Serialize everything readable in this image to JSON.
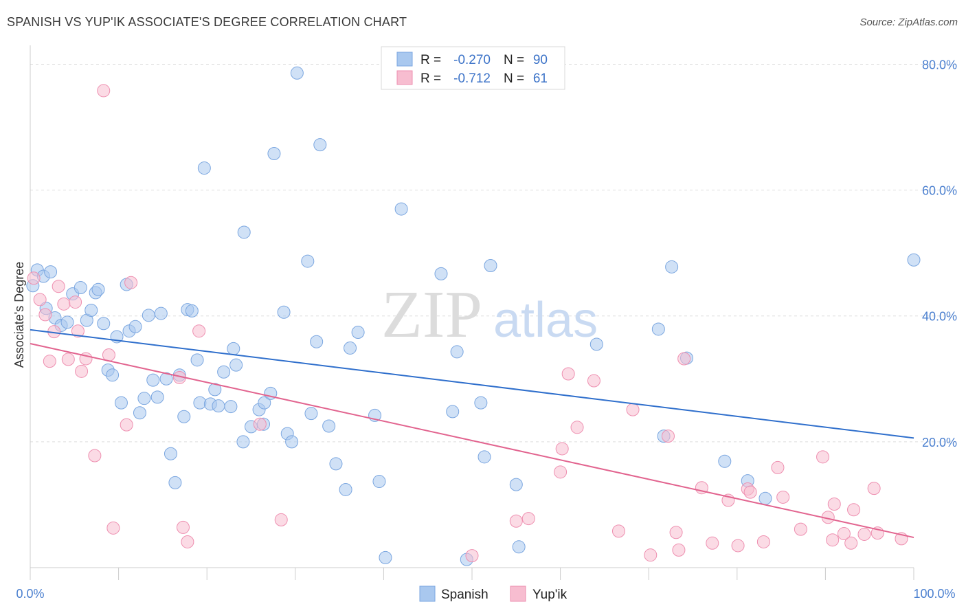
{
  "chart_data": {
    "type": "scatter",
    "title": "SPANISH VS YUP'IK ASSOCIATE'S DEGREE CORRELATION CHART",
    "source": "Source: ZipAtlas.com",
    "ylabel": "Associate's Degree",
    "xlabel": "",
    "xlim": [
      0,
      100
    ],
    "ylim": [
      0,
      83
    ],
    "x_tick_labels": [
      "0.0%",
      "100.0%"
    ],
    "y_ticks": [
      20,
      40,
      60,
      80
    ],
    "y_tick_labels": [
      "20.0%",
      "40.0%",
      "60.0%",
      "80.0%"
    ],
    "watermark": {
      "zip": "ZIP",
      "atlas": "atlas"
    },
    "legend_top": {
      "r_label": "R =",
      "n_label": "N =",
      "rows": [
        {
          "r": "-0.270",
          "n": "90"
        },
        {
          "r": "-0.712",
          "n": "61"
        }
      ]
    },
    "series": [
      {
        "name": "Spanish",
        "color": "#a9c8ef",
        "stroke": "#7aa6e0",
        "line_color": "#2f6fcc",
        "trend": [
          [
            0,
            37.8
          ],
          [
            100,
            20.6
          ]
        ],
        "points": [
          [
            0.3,
            44.8
          ],
          [
            0.8,
            47.3
          ],
          [
            1.5,
            46.3
          ],
          [
            2.3,
            47.0
          ],
          [
            1.8,
            41.2
          ],
          [
            2.8,
            39.7
          ],
          [
            3.5,
            38.5
          ],
          [
            4.2,
            39.0
          ],
          [
            4.8,
            43.5
          ],
          [
            5.7,
            44.5
          ],
          [
            6.4,
            39.3
          ],
          [
            6.9,
            40.9
          ],
          [
            7.4,
            43.7
          ],
          [
            7.7,
            44.2
          ],
          [
            8.3,
            38.8
          ],
          [
            8.8,
            31.4
          ],
          [
            9.3,
            30.6
          ],
          [
            9.8,
            36.7
          ],
          [
            10.3,
            26.2
          ],
          [
            10.9,
            45.0
          ],
          [
            11.2,
            37.6
          ],
          [
            11.9,
            38.3
          ],
          [
            12.4,
            24.6
          ],
          [
            12.9,
            26.9
          ],
          [
            13.4,
            40.1
          ],
          [
            13.9,
            29.8
          ],
          [
            14.4,
            27.1
          ],
          [
            14.8,
            40.4
          ],
          [
            15.4,
            30.0
          ],
          [
            15.9,
            18.1
          ],
          [
            16.4,
            13.5
          ],
          [
            16.9,
            30.6
          ],
          [
            17.4,
            24.0
          ],
          [
            17.8,
            41.0
          ],
          [
            18.3,
            40.8
          ],
          [
            18.9,
            33.0
          ],
          [
            19.2,
            26.2
          ],
          [
            19.7,
            63.5
          ],
          [
            20.4,
            26.0
          ],
          [
            20.9,
            28.3
          ],
          [
            21.3,
            25.7
          ],
          [
            21.9,
            31.1
          ],
          [
            22.7,
            25.6
          ],
          [
            23.0,
            34.8
          ],
          [
            23.3,
            32.2
          ],
          [
            24.1,
            20.0
          ],
          [
            24.2,
            53.3
          ],
          [
            25.0,
            22.4
          ],
          [
            25.9,
            25.1
          ],
          [
            26.5,
            26.2
          ],
          [
            26.4,
            22.8
          ],
          [
            27.2,
            27.7
          ],
          [
            27.6,
            65.8
          ],
          [
            28.7,
            40.6
          ],
          [
            29.1,
            21.3
          ],
          [
            29.6,
            20.0
          ],
          [
            30.2,
            78.6
          ],
          [
            31.4,
            48.7
          ],
          [
            31.8,
            24.5
          ],
          [
            32.4,
            35.9
          ],
          [
            32.8,
            67.2
          ],
          [
            33.8,
            22.5
          ],
          [
            34.6,
            16.5
          ],
          [
            35.7,
            12.4
          ],
          [
            36.2,
            34.9
          ],
          [
            37.1,
            37.4
          ],
          [
            39.0,
            24.2
          ],
          [
            39.5,
            13.7
          ],
          [
            40.2,
            1.6
          ],
          [
            42.0,
            57.0
          ],
          [
            46.5,
            46.7
          ],
          [
            47.8,
            24.8
          ],
          [
            48.3,
            34.3
          ],
          [
            49.4,
            1.3
          ],
          [
            51.0,
            26.2
          ],
          [
            51.4,
            17.6
          ],
          [
            52.1,
            48.0
          ],
          [
            55.0,
            13.2
          ],
          [
            55.3,
            3.3
          ],
          [
            64.1,
            35.5
          ],
          [
            71.1,
            37.9
          ],
          [
            71.7,
            20.9
          ],
          [
            72.6,
            47.8
          ],
          [
            74.3,
            33.3
          ],
          [
            78.6,
            16.9
          ],
          [
            81.2,
            13.8
          ],
          [
            83.2,
            11.0
          ],
          [
            100,
            48.9
          ]
        ]
      },
      {
        "name": "Yup'ik",
        "color": "#f7bdd0",
        "stroke": "#ee8fb0",
        "line_color": "#e2648f",
        "trend": [
          [
            0,
            35.6
          ],
          [
            100,
            4.8
          ]
        ],
        "points": [
          [
            0.4,
            46.0
          ],
          [
            1.1,
            42.6
          ],
          [
            1.7,
            40.2
          ],
          [
            2.2,
            32.8
          ],
          [
            2.7,
            37.5
          ],
          [
            3.2,
            44.7
          ],
          [
            3.8,
            41.9
          ],
          [
            4.3,
            33.1
          ],
          [
            5.1,
            42.2
          ],
          [
            5.4,
            37.6
          ],
          [
            5.8,
            31.2
          ],
          [
            6.3,
            33.2
          ],
          [
            7.3,
            17.8
          ],
          [
            8.3,
            75.8
          ],
          [
            8.9,
            33.8
          ],
          [
            9.4,
            6.3
          ],
          [
            10.9,
            22.7
          ],
          [
            11.4,
            45.3
          ],
          [
            16.9,
            30.2
          ],
          [
            17.3,
            6.4
          ],
          [
            17.8,
            4.1
          ],
          [
            19.1,
            37.6
          ],
          [
            26.0,
            22.8
          ],
          [
            28.4,
            7.6
          ],
          [
            50.0,
            1.9
          ],
          [
            55.0,
            7.4
          ],
          [
            56.4,
            7.8
          ],
          [
            60.0,
            15.2
          ],
          [
            60.2,
            18.9
          ],
          [
            60.9,
            30.8
          ],
          [
            61.9,
            22.3
          ],
          [
            63.8,
            29.7
          ],
          [
            66.6,
            5.8
          ],
          [
            68.2,
            25.1
          ],
          [
            70.2,
            2.0
          ],
          [
            72.2,
            20.9
          ],
          [
            73.1,
            5.6
          ],
          [
            73.4,
            2.8
          ],
          [
            74.0,
            33.2
          ],
          [
            76.0,
            12.7
          ],
          [
            77.2,
            3.9
          ],
          [
            79.0,
            10.7
          ],
          [
            80.1,
            3.5
          ],
          [
            81.2,
            12.5
          ],
          [
            81.5,
            12.0
          ],
          [
            83.0,
            4.1
          ],
          [
            84.6,
            15.9
          ],
          [
            85.2,
            11.2
          ],
          [
            87.2,
            6.1
          ],
          [
            89.7,
            17.6
          ],
          [
            90.3,
            8.0
          ],
          [
            90.8,
            4.4
          ],
          [
            91.0,
            10.1
          ],
          [
            92.1,
            5.4
          ],
          [
            92.9,
            3.9
          ],
          [
            93.2,
            9.2
          ],
          [
            94.4,
            5.3
          ],
          [
            95.5,
            12.6
          ],
          [
            95.9,
            5.5
          ],
          [
            98.6,
            4.6
          ]
        ]
      }
    ]
  }
}
